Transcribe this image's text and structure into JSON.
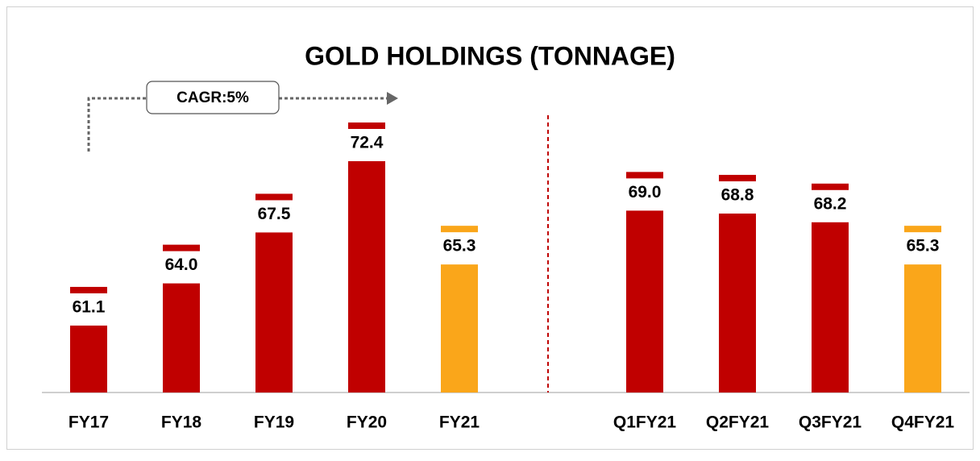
{
  "chart_data": {
    "type": "bar",
    "title": "GOLD HOLDINGS (TONNAGE)",
    "annotation": "CAGR:5%",
    "categories": [
      "FY17",
      "FY18",
      "FY19",
      "FY20",
      "FY21",
      null,
      "Q1FY21",
      "Q2FY21",
      "Q3FY21",
      "Q4FY21"
    ],
    "values": [
      61.1,
      64.0,
      67.5,
      72.4,
      65.3,
      null,
      69.0,
      68.8,
      68.2,
      65.3
    ],
    "value_labels": [
      "61.1",
      "64.0",
      "67.5",
      "72.4",
      "65.3",
      null,
      "69.0",
      "68.8",
      "68.2",
      "65.3"
    ],
    "colors": [
      "#c00000",
      "#c00000",
      "#c00000",
      "#c00000",
      "#faa61a",
      null,
      "#c00000",
      "#c00000",
      "#c00000",
      "#faa61a"
    ],
    "ylim": [
      56.5,
      76
    ]
  }
}
